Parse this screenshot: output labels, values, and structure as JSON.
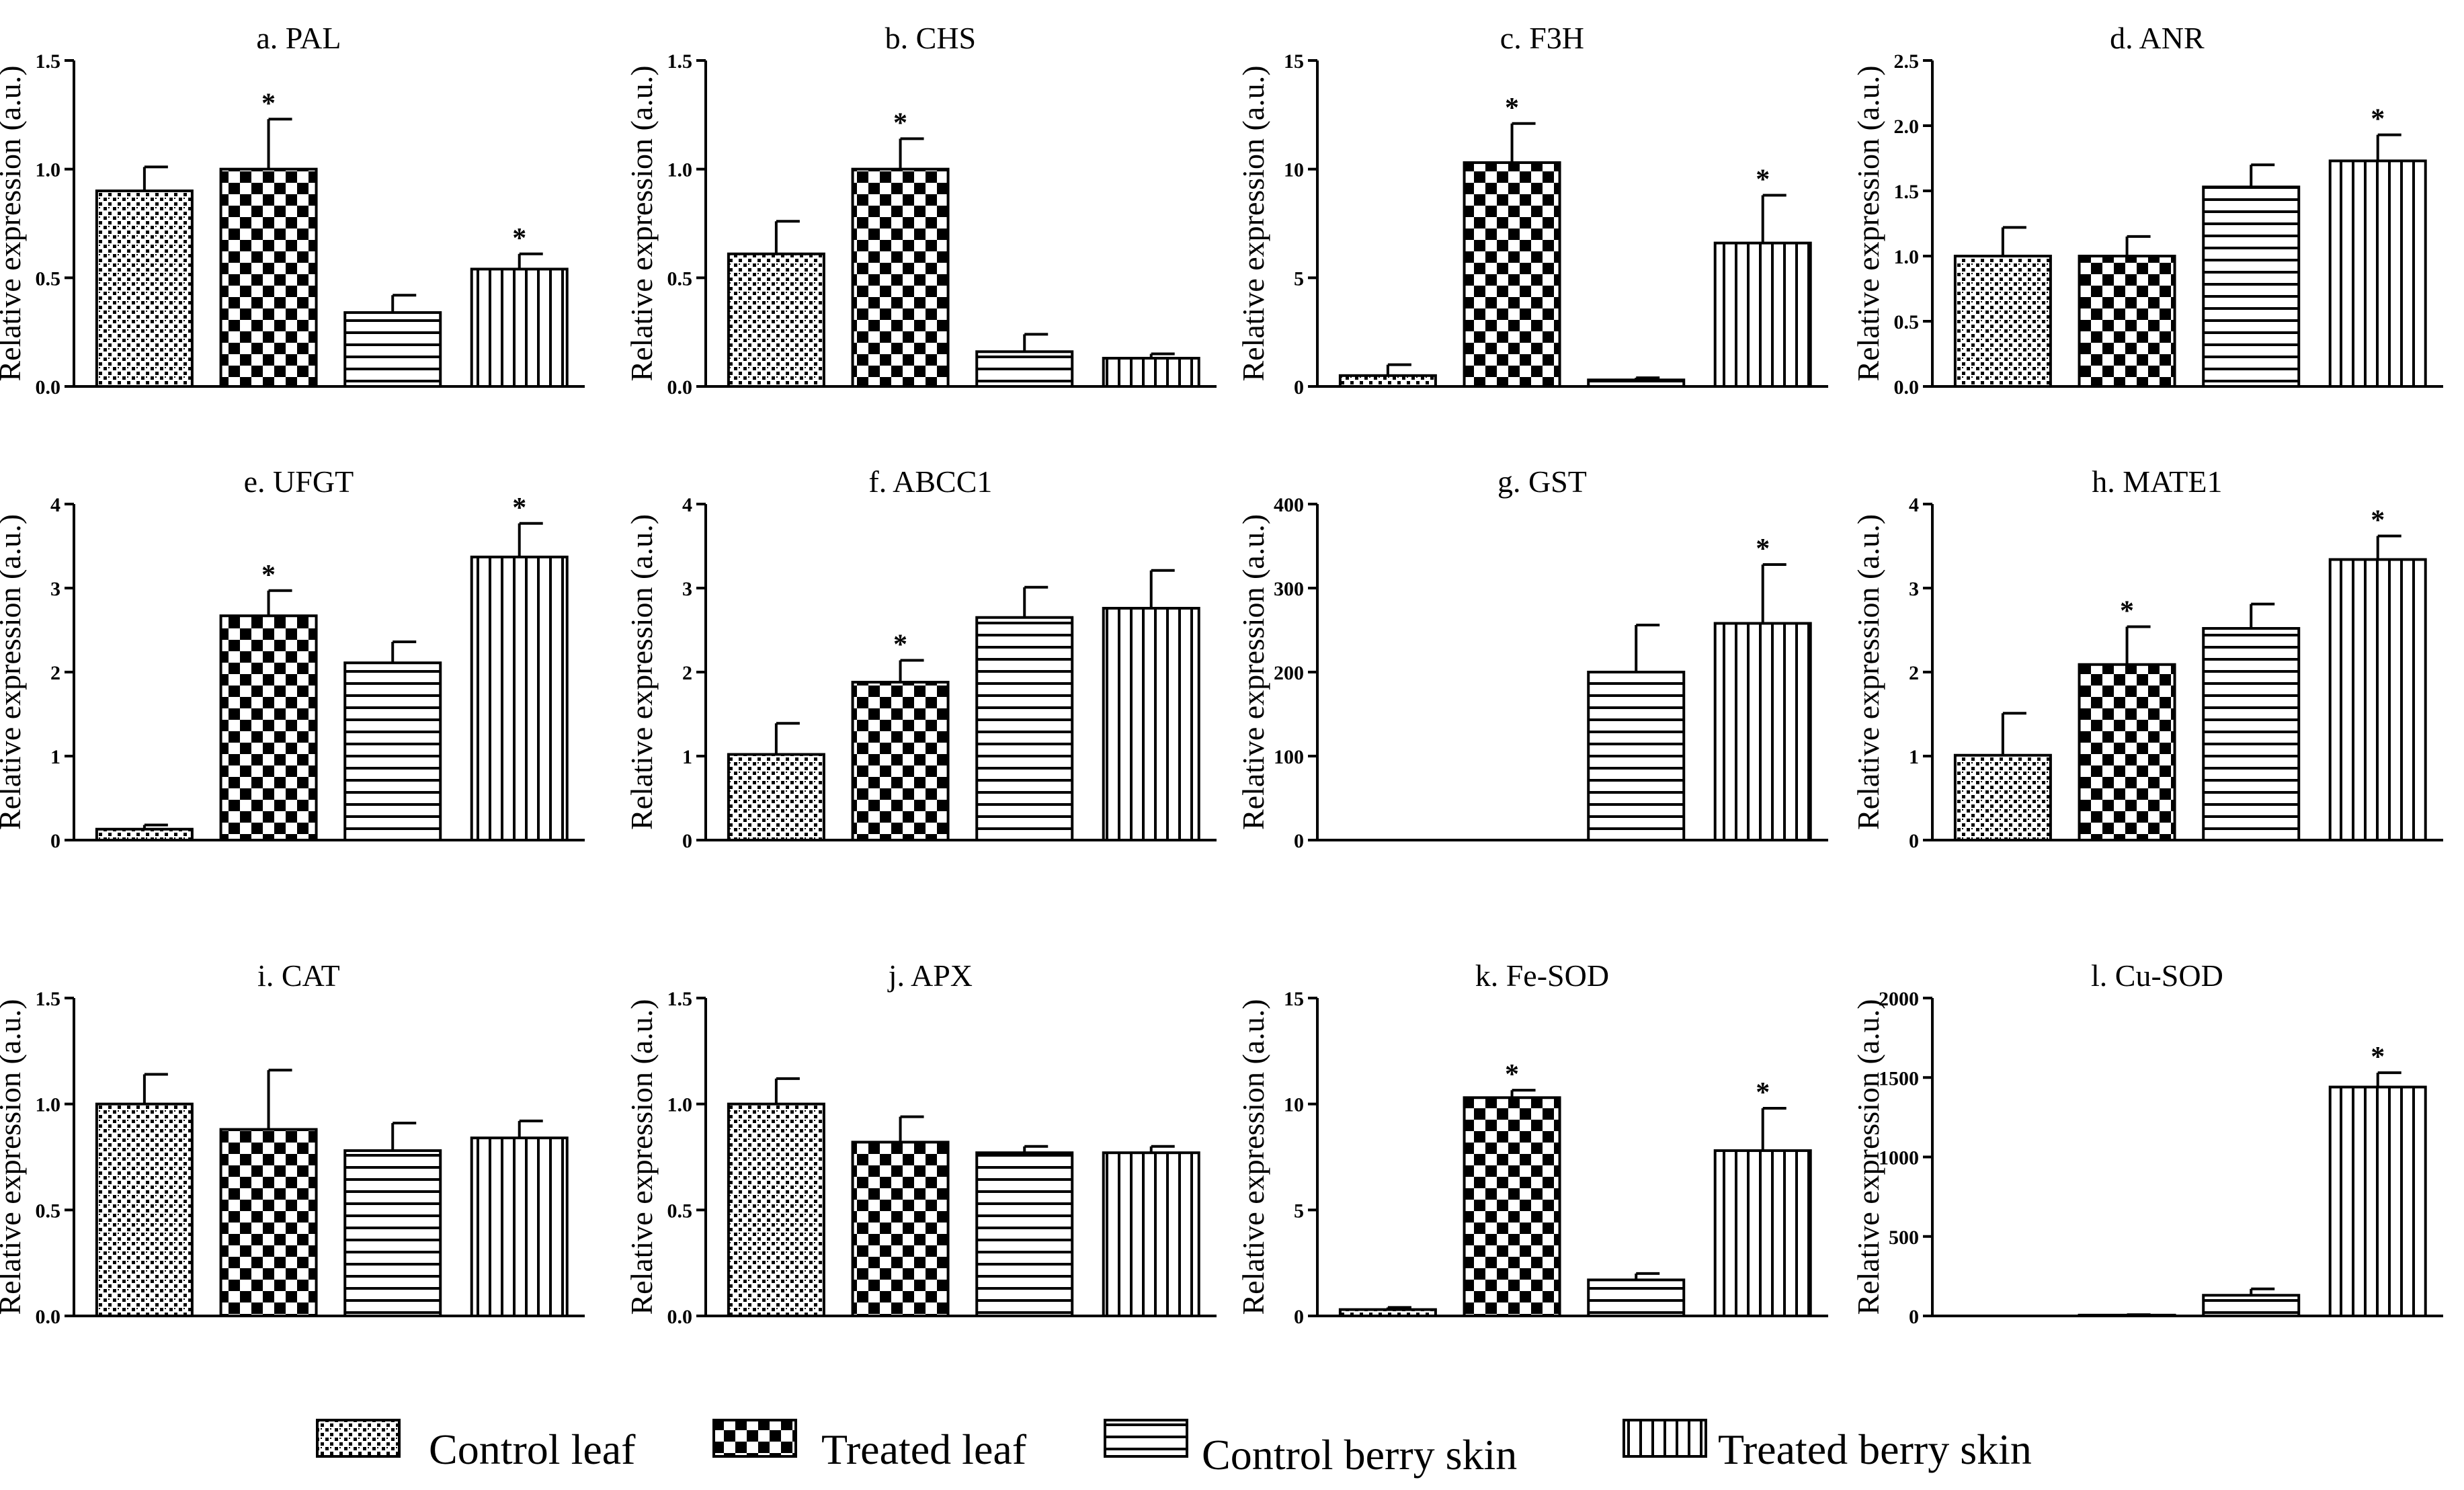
{
  "y_axis_label": "Relative expression (a.u.)",
  "series": [
    {
      "name": "Control leaf",
      "pattern": "pat-dots"
    },
    {
      "name": "Treated leaf",
      "pattern": "pat-check"
    },
    {
      "name": "Control berry skin",
      "pattern": "pat-hlines"
    },
    {
      "name": "Treated berry skin",
      "pattern": "pat-vlines"
    }
  ],
  "significance_marker": "*",
  "chart_data": [
    {
      "type": "bar",
      "title": "a. PAL",
      "categories": [
        "Control leaf",
        "Treated leaf",
        "Control berry skin",
        "Treated berry skin"
      ],
      "values": [
        0.9,
        1.0,
        0.34,
        0.54
      ],
      "errors": [
        0.11,
        0.23,
        0.08,
        0.07
      ],
      "significant": [
        false,
        true,
        false,
        true
      ],
      "ylim": [
        0,
        1.5
      ],
      "yticks": [
        0,
        0.5,
        1.0,
        1.5
      ],
      "yticklabels": [
        "0.0",
        "0.5",
        "1.0",
        "1.5"
      ],
      "ylabel": "Relative expression (a.u.)"
    },
    {
      "type": "bar",
      "title": "b. CHS",
      "categories": [
        "Control leaf",
        "Treated leaf",
        "Control berry skin",
        "Treated berry skin"
      ],
      "values": [
        0.61,
        1.0,
        0.16,
        0.13
      ],
      "errors": [
        0.15,
        0.14,
        0.08,
        0.02
      ],
      "significant": [
        false,
        true,
        false,
        false
      ],
      "ylim": [
        0,
        1.5
      ],
      "yticks": [
        0,
        0.5,
        1.0,
        1.5
      ],
      "yticklabels": [
        "0.0",
        "0.5",
        "1.0",
        "1.5"
      ],
      "ylabel": "Relative expression (a.u.)"
    },
    {
      "type": "bar",
      "title": "c. F3H",
      "categories": [
        "Control leaf",
        "Treated leaf",
        "Control berry skin",
        "Treated berry skin"
      ],
      "values": [
        0.5,
        10.3,
        0.3,
        6.6
      ],
      "errors": [
        0.5,
        1.8,
        0.1,
        2.2
      ],
      "significant": [
        false,
        true,
        false,
        true
      ],
      "ylim": [
        0,
        15
      ],
      "yticks": [
        0,
        5,
        10,
        15
      ],
      "yticklabels": [
        "0",
        "5",
        "10",
        "15"
      ],
      "ylabel": "Relative expression (a.u.)"
    },
    {
      "type": "bar",
      "title": "d. ANR",
      "categories": [
        "Control leaf",
        "Treated leaf",
        "Control berry skin",
        "Treated berry skin"
      ],
      "values": [
        1.0,
        1.0,
        1.53,
        1.73
      ],
      "errors": [
        0.22,
        0.15,
        0.17,
        0.2
      ],
      "significant": [
        false,
        false,
        false,
        true
      ],
      "ylim": [
        0,
        2.5
      ],
      "yticks": [
        0,
        0.5,
        1.0,
        1.5,
        2.0,
        2.5
      ],
      "yticklabels": [
        "0.0",
        "0.5",
        "1.0",
        "1.5",
        "2.0",
        "2.5"
      ],
      "ylabel": "Relative expression (a.u.)"
    },
    {
      "type": "bar",
      "title": "e. UFGT",
      "categories": [
        "Control leaf",
        "Treated leaf",
        "Control berry skin",
        "Treated berry skin"
      ],
      "values": [
        0.13,
        2.67,
        2.11,
        3.37
      ],
      "errors": [
        0.05,
        0.3,
        0.25,
        0.4
      ],
      "significant": [
        false,
        true,
        false,
        true
      ],
      "ylim": [
        0,
        4
      ],
      "yticks": [
        0,
        1,
        2,
        3,
        4
      ],
      "yticklabels": [
        "0",
        "1",
        "2",
        "3",
        "4"
      ],
      "ylabel": "Relative expression (a.u.)"
    },
    {
      "type": "bar",
      "title": "f. ABCC1",
      "categories": [
        "Control leaf",
        "Treated leaf",
        "Control berry skin",
        "Treated berry skin"
      ],
      "values": [
        1.02,
        1.88,
        2.65,
        2.76
      ],
      "errors": [
        0.37,
        0.26,
        0.36,
        0.45
      ],
      "significant": [
        false,
        true,
        false,
        false
      ],
      "ylim": [
        0,
        4
      ],
      "yticks": [
        0,
        1,
        2,
        3,
        4
      ],
      "yticklabels": [
        "0",
        "1",
        "2",
        "3",
        "4"
      ],
      "ylabel": "Relative expression (a.u.)"
    },
    {
      "type": "bar",
      "title": "g. GST",
      "categories": [
        "Control leaf",
        "Treated leaf",
        "Control berry skin",
        "Treated berry skin"
      ],
      "values": [
        0,
        0,
        200,
        258
      ],
      "errors": [
        0,
        0,
        56,
        70
      ],
      "significant": [
        false,
        false,
        false,
        true
      ],
      "ylim": [
        0,
        400
      ],
      "yticks": [
        0,
        100,
        200,
        300,
        400
      ],
      "yticklabels": [
        "0",
        "100",
        "200",
        "300",
        "400"
      ],
      "ylabel": "Relative expression (a.u.)"
    },
    {
      "type": "bar",
      "title": "h. MATE1",
      "categories": [
        "Control leaf",
        "Treated leaf",
        "Control berry skin",
        "Treated berry skin"
      ],
      "values": [
        1.01,
        2.09,
        2.52,
        3.34
      ],
      "errors": [
        0.5,
        0.45,
        0.29,
        0.28
      ],
      "significant": [
        false,
        true,
        false,
        true
      ],
      "ylim": [
        0,
        4
      ],
      "yticks": [
        0,
        1,
        2,
        3,
        4
      ],
      "yticklabels": [
        "0",
        "1",
        "2",
        "3",
        "4"
      ],
      "ylabel": "Relative expression (a.u.)"
    },
    {
      "type": "bar",
      "title": "i. CAT",
      "categories": [
        "Control leaf",
        "Treated leaf",
        "Control berry skin",
        "Treated berry skin"
      ],
      "values": [
        1.0,
        0.88,
        0.78,
        0.84
      ],
      "errors": [
        0.14,
        0.28,
        0.13,
        0.08
      ],
      "significant": [
        false,
        false,
        false,
        false
      ],
      "ylim": [
        0,
        1.5
      ],
      "yticks": [
        0,
        0.5,
        1.0,
        1.5
      ],
      "yticklabels": [
        "0.0",
        "0.5",
        "1.0",
        "1.5"
      ],
      "ylabel": "Relative expression (a.u.)"
    },
    {
      "type": "bar",
      "title": "j. APX",
      "categories": [
        "Control leaf",
        "Treated leaf",
        "Control berry skin",
        "Treated berry skin"
      ],
      "values": [
        1.0,
        0.82,
        0.77,
        0.77
      ],
      "errors": [
        0.12,
        0.12,
        0.03,
        0.03
      ],
      "significant": [
        false,
        false,
        false,
        false
      ],
      "ylim": [
        0,
        1.5
      ],
      "yticks": [
        0,
        0.5,
        1.0,
        1.5
      ],
      "yticklabels": [
        "0.0",
        "0.5",
        "1.0",
        "1.5"
      ],
      "ylabel": "Relative expression (a.u.)"
    },
    {
      "type": "bar",
      "title": "k. Fe-SOD",
      "categories": [
        "Control leaf",
        "Treated leaf",
        "Control berry skin",
        "Treated berry skin"
      ],
      "values": [
        0.3,
        10.3,
        1.7,
        7.8
      ],
      "errors": [
        0.1,
        0.35,
        0.3,
        2.0
      ],
      "significant": [
        false,
        true,
        false,
        true
      ],
      "ylim": [
        0,
        15
      ],
      "yticks": [
        0,
        5,
        10,
        15
      ],
      "yticklabels": [
        "0",
        "5",
        "10",
        "15"
      ],
      "ylabel": "Relative expression (a.u.)"
    },
    {
      "type": "bar",
      "title": "l. Cu-SOD",
      "categories": [
        "Control leaf",
        "Treated leaf",
        "Control berry skin",
        "Treated berry skin"
      ],
      "values": [
        0,
        5,
        130,
        1440
      ],
      "errors": [
        0,
        3,
        40,
        90
      ],
      "significant": [
        false,
        false,
        false,
        true
      ],
      "ylim": [
        0,
        2000
      ],
      "yticks": [
        0,
        500,
        1000,
        1500,
        2000
      ],
      "yticklabels": [
        "0",
        "500",
        "1000",
        "1500",
        "2000"
      ],
      "ylabel": "Relative expression (a.u.)"
    }
  ]
}
